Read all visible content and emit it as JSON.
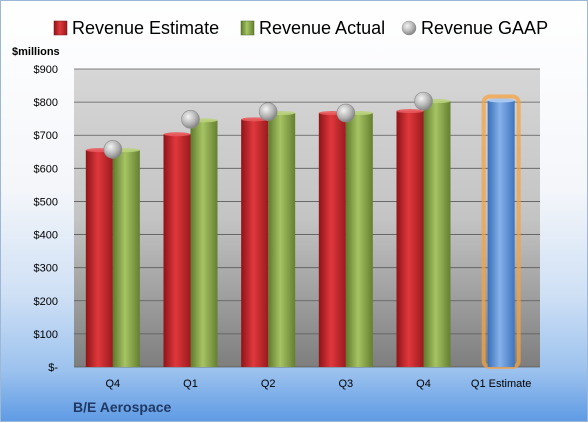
{
  "chart_data": {
    "type": "bar",
    "title": "",
    "ylabel": "$millions",
    "footer_label": "B/E Aerospace",
    "categories": [
      "Q4",
      "Q1",
      "Q2",
      "Q3",
      "Q4",
      "Q1 Estimate"
    ],
    "ylim": [
      0,
      900
    ],
    "yticks": [
      0,
      100,
      200,
      300,
      400,
      500,
      600,
      700,
      800,
      900
    ],
    "ytick_labels": [
      "$-",
      "$100",
      "$200",
      "$300",
      "$400",
      "$500",
      "$600",
      "$700",
      "$800",
      "$900"
    ],
    "grid": true,
    "legend_position": "top",
    "series": [
      {
        "name": "Revenue Estimate",
        "kind": "bar",
        "color": "#c0282d",
        "values": [
          655,
          703,
          748,
          767,
          773,
          null
        ]
      },
      {
        "name": "Revenue Actual",
        "kind": "bar",
        "color": "#8aa84a",
        "values": [
          655,
          745,
          767,
          767,
          803,
          null
        ]
      },
      {
        "name": "Revenue GAAP",
        "kind": "point",
        "color": "#b8b8b8",
        "values": [
          657,
          748,
          771,
          767,
          803,
          null
        ]
      }
    ],
    "estimate_bar": {
      "category": "Q1 Estimate",
      "value": 805,
      "color": "#5b8fd6",
      "highlight": "#f5a142"
    }
  }
}
